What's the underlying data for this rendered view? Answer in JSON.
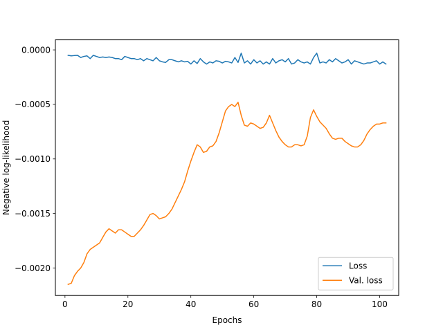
{
  "chart_data": {
    "type": "line",
    "title": "",
    "xlabel": "Epochs",
    "ylabel": "Negative log-likelihood",
    "xlim": [
      -3.05,
      106.05
    ],
    "ylim": [
      -0.002252,
      9.2e-05
    ],
    "xticks": [
      0,
      20,
      40,
      60,
      80,
      100
    ],
    "xtick_labels": [
      "0",
      "20",
      "40",
      "60",
      "80",
      "100"
    ],
    "yticks": [
      0.0,
      -0.0005,
      -0.001,
      -0.0015,
      -0.002
    ],
    "ytick_labels": [
      "0.0000",
      "−0.0005",
      "−0.0010",
      "−0.0015",
      "−0.0020"
    ],
    "grid": false,
    "legend_position": "lower-right",
    "x": [
      1,
      2,
      3,
      4,
      5,
      6,
      7,
      8,
      9,
      10,
      11,
      12,
      13,
      14,
      15,
      16,
      17,
      18,
      19,
      20,
      21,
      22,
      23,
      24,
      25,
      26,
      27,
      28,
      29,
      30,
      31,
      32,
      33,
      34,
      35,
      36,
      37,
      38,
      39,
      40,
      41,
      42,
      43,
      44,
      45,
      46,
      47,
      48,
      49,
      50,
      51,
      52,
      53,
      54,
      55,
      56,
      57,
      58,
      59,
      60,
      61,
      62,
      63,
      64,
      65,
      66,
      67,
      68,
      69,
      70,
      71,
      72,
      73,
      74,
      75,
      76,
      77,
      78,
      79,
      80,
      81,
      82,
      83,
      84,
      85,
      86,
      87,
      88,
      89,
      90,
      91,
      92,
      93,
      94,
      95,
      96,
      97,
      98,
      99,
      100,
      101,
      102
    ],
    "series": [
      {
        "name": "Loss",
        "color": "#1f77b4",
        "values": [
          -5e-05,
          -5.5e-05,
          -5.2e-05,
          -5e-05,
          -7e-05,
          -6e-05,
          -5.5e-05,
          -8e-05,
          -5e-05,
          -6e-05,
          -7e-05,
          -6.5e-05,
          -7e-05,
          -6.5e-05,
          -7e-05,
          -8e-05,
          -8e-05,
          -9e-05,
          -6e-05,
          -7e-05,
          -8e-05,
          -8e-05,
          -9e-05,
          -8e-05,
          -0.0001,
          -8e-05,
          -9e-05,
          -0.0001,
          -7e-05,
          -0.0001,
          -0.00011,
          -0.000115,
          -9e-05,
          -9e-05,
          -0.0001,
          -0.00011,
          -0.0001,
          -0.00011,
          -0.000105,
          -0.00013,
          -0.0001,
          -0.000125,
          -8e-05,
          -0.00011,
          -0.00013,
          -0.00011,
          -0.00012,
          -0.0001,
          -0.000105,
          -0.00012,
          -0.000105,
          -0.00011,
          -0.00012,
          -7e-05,
          -0.000115,
          -3e-05,
          -0.00012,
          -0.0001,
          -0.00013,
          -9e-05,
          -0.00012,
          -0.0001,
          -0.00013,
          -0.00011,
          -0.00013,
          -8e-05,
          -0.00012,
          -0.0001,
          -9e-05,
          -0.00011,
          -8e-05,
          -0.00013,
          -0.00012,
          -9e-05,
          -0.00011,
          -0.00012,
          -0.00011,
          -0.00013,
          -7e-05,
          -3e-05,
          -0.00012,
          -0.00011,
          -0.00012,
          -9e-05,
          -0.00011,
          -8e-05,
          -0.0001,
          -0.00012,
          -0.00011,
          -9e-05,
          -0.00013,
          -0.0001,
          -0.00011,
          -0.00012,
          -0.00013,
          -0.00012,
          -0.00012,
          -0.00011,
          -0.0001,
          -0.00013,
          -0.00011,
          -0.00013
        ]
      },
      {
        "name": "Val. loss",
        "color": "#ff7f0e",
        "values": [
          -0.00215,
          -0.00214,
          -0.00207,
          -0.00203,
          -0.002,
          -0.00195,
          -0.00187,
          -0.00183,
          -0.00181,
          -0.00179,
          -0.00177,
          -0.00172,
          -0.00167,
          -0.00164,
          -0.00166,
          -0.00168,
          -0.00165,
          -0.00165,
          -0.00167,
          -0.00169,
          -0.00171,
          -0.00171,
          -0.00168,
          -0.00165,
          -0.00161,
          -0.00156,
          -0.00151,
          -0.0015,
          -0.00152,
          -0.00155,
          -0.00154,
          -0.00153,
          -0.0015,
          -0.00146,
          -0.0014,
          -0.00134,
          -0.00128,
          -0.00121,
          -0.00111,
          -0.00102,
          -0.00094,
          -0.00087,
          -0.00089,
          -0.00094,
          -0.00093,
          -0.00089,
          -0.00088,
          -0.00084,
          -0.00076,
          -0.00066,
          -0.00056,
          -0.00052,
          -0.0005,
          -0.00052,
          -0.00048,
          -0.0006,
          -0.00069,
          -0.0007,
          -0.00067,
          -0.00068,
          -0.0007,
          -0.00072,
          -0.00071,
          -0.00067,
          -0.0006,
          -0.00067,
          -0.00074,
          -0.0008,
          -0.00084,
          -0.00087,
          -0.00089,
          -0.00089,
          -0.00087,
          -0.00087,
          -0.00088,
          -0.00087,
          -0.00079,
          -0.00062,
          -0.00055,
          -0.00061,
          -0.00066,
          -0.00069,
          -0.00072,
          -0.00077,
          -0.00081,
          -0.00082,
          -0.00081,
          -0.00081,
          -0.00084,
          -0.00086,
          -0.00088,
          -0.00089,
          -0.00089,
          -0.00087,
          -0.00083,
          -0.00077,
          -0.00073,
          -0.0007,
          -0.00068,
          -0.00068,
          -0.00067,
          -0.00067
        ]
      }
    ]
  }
}
